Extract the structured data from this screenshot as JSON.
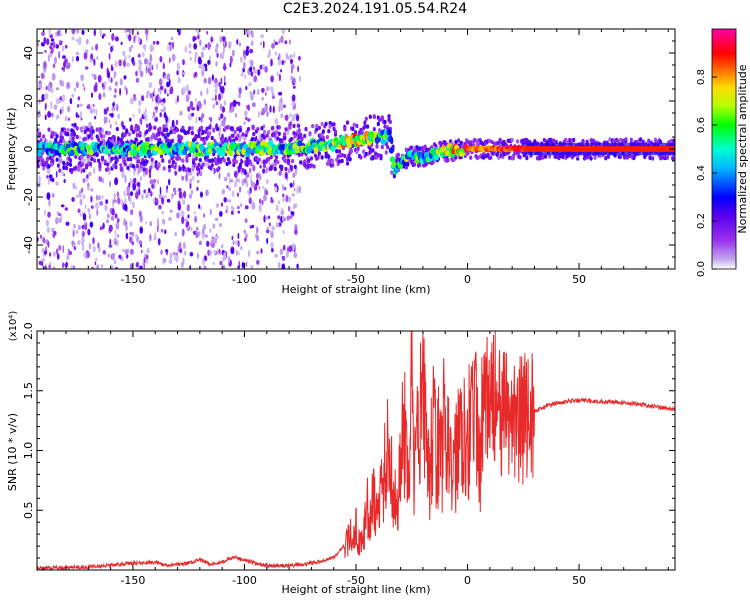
{
  "title": "C2E3.2024.191.05.54.R24",
  "chart_data": [
    {
      "type": "heatmap",
      "title": "C2E3.2024.191.05.54.R24",
      "xlabel": "Height of straight line (km)",
      "ylabel": "Frequency (Hz)",
      "xlim": [
        -193,
        93
      ],
      "ylim": [
        -50,
        50
      ],
      "xticks": [
        -150,
        -100,
        -50,
        0,
        50
      ],
      "xtick_labels": [
        "-150",
        "-100",
        "-50",
        "0",
        "50"
      ],
      "yticks": [
        -40,
        -20,
        0,
        20,
        40
      ],
      "ytick_labels": [
        "-40",
        "-20",
        "0",
        "20",
        "40"
      ],
      "colorbar": {
        "label": "Normalized spectral amplitude",
        "range": [
          0,
          1
        ],
        "ticks": [
          0.0,
          0.2,
          0.4,
          0.6,
          0.8
        ],
        "tick_labels": [
          "0.0",
          "0.2",
          "0.4",
          "0.6",
          "0.8"
        ],
        "colors": [
          "#ffffff",
          "#c2a8ee",
          "#9a30ee",
          "#5a00ee",
          "#0000ff",
          "#00b7ff",
          "#00ffd0",
          "#00ff00",
          "#b8ff00",
          "#ffd800",
          "#ff5a00",
          "#ff0000",
          "#ff0066",
          "#ff00aa"
        ]
      },
      "ridge": {
        "x": [
          -193,
          -180,
          -160,
          -140,
          -120,
          -100,
          -80,
          -60,
          -50,
          -40,
          -35,
          -33,
          -30,
          -25,
          -20,
          -10,
          0,
          10,
          20,
          30,
          50,
          70,
          93
        ],
        "freq": [
          0,
          0,
          0,
          0,
          0,
          0,
          0.5,
          2,
          3.5,
          5,
          5,
          -8,
          -5,
          -3,
          -3,
          -1,
          0,
          0,
          0,
          0,
          0,
          0,
          0
        ],
        "amplitude": [
          0.35,
          0.45,
          0.5,
          0.5,
          0.55,
          0.55,
          0.5,
          0.6,
          0.7,
          0.5,
          0.45,
          0.45,
          0.45,
          0.55,
          0.5,
          0.6,
          0.85,
          0.8,
          0.9,
          0.9,
          0.85,
          0.9,
          0.9
        ]
      },
      "noise_region": [
        -193,
        -75
      ]
    },
    {
      "type": "line",
      "xlabel": "Height of straight line (km)",
      "ylabel": "SNR (10 * v/v)",
      "yscale_label": "(x10⁴)",
      "xlim": [
        -193,
        93
      ],
      "ylim": [
        0,
        2.0
      ],
      "xticks": [
        -150,
        -100,
        -50,
        0,
        50
      ],
      "xtick_labels": [
        "-150",
        "-100",
        "-50",
        "0",
        "50"
      ],
      "yticks": [
        0.5,
        1.0,
        1.5,
        2.0
      ],
      "ytick_labels": [
        "0.5",
        "1.0",
        "1.5",
        "2.0"
      ],
      "line_color": "#e8292a",
      "series": [
        {
          "x": [
            -193,
            -170,
            -150,
            -140,
            -135,
            -125,
            -120,
            -115,
            -110,
            -105,
            -100,
            -95,
            -90,
            -80,
            -70,
            -65,
            -60,
            -55,
            -50,
            -48,
            -45,
            -42,
            -40,
            -38,
            -35,
            -32,
            -30,
            -28,
            -26,
            -25,
            -24,
            -22,
            -20,
            -18,
            -15,
            -12,
            -10,
            -8,
            -5,
            -3,
            0,
            3,
            5,
            8,
            10,
            12,
            15,
            18,
            20,
            25,
            30,
            35,
            40,
            45,
            50,
            60,
            70,
            80,
            93
          ],
          "values": [
            0.01,
            0.02,
            0.05,
            0.06,
            0.03,
            0.05,
            0.08,
            0.04,
            0.06,
            0.1,
            0.08,
            0.05,
            0.03,
            0.03,
            0.05,
            0.07,
            0.1,
            0.2,
            0.35,
            0.2,
            0.5,
            0.6,
            0.45,
            0.8,
            1.0,
            0.5,
            0.9,
            1.2,
            0.4,
            2.0,
            0.8,
            1.1,
            1.6,
            0.7,
            1.2,
            0.9,
            1.35,
            0.8,
            1.0,
            1.25,
            1.15,
            1.4,
            0.95,
            1.45,
            1.3,
            1.5,
            1.2,
            1.3,
            1.3,
            1.25,
            1.33,
            1.37,
            1.4,
            1.41,
            1.42,
            1.41,
            1.4,
            1.38,
            1.34
          ]
        }
      ]
    }
  ]
}
